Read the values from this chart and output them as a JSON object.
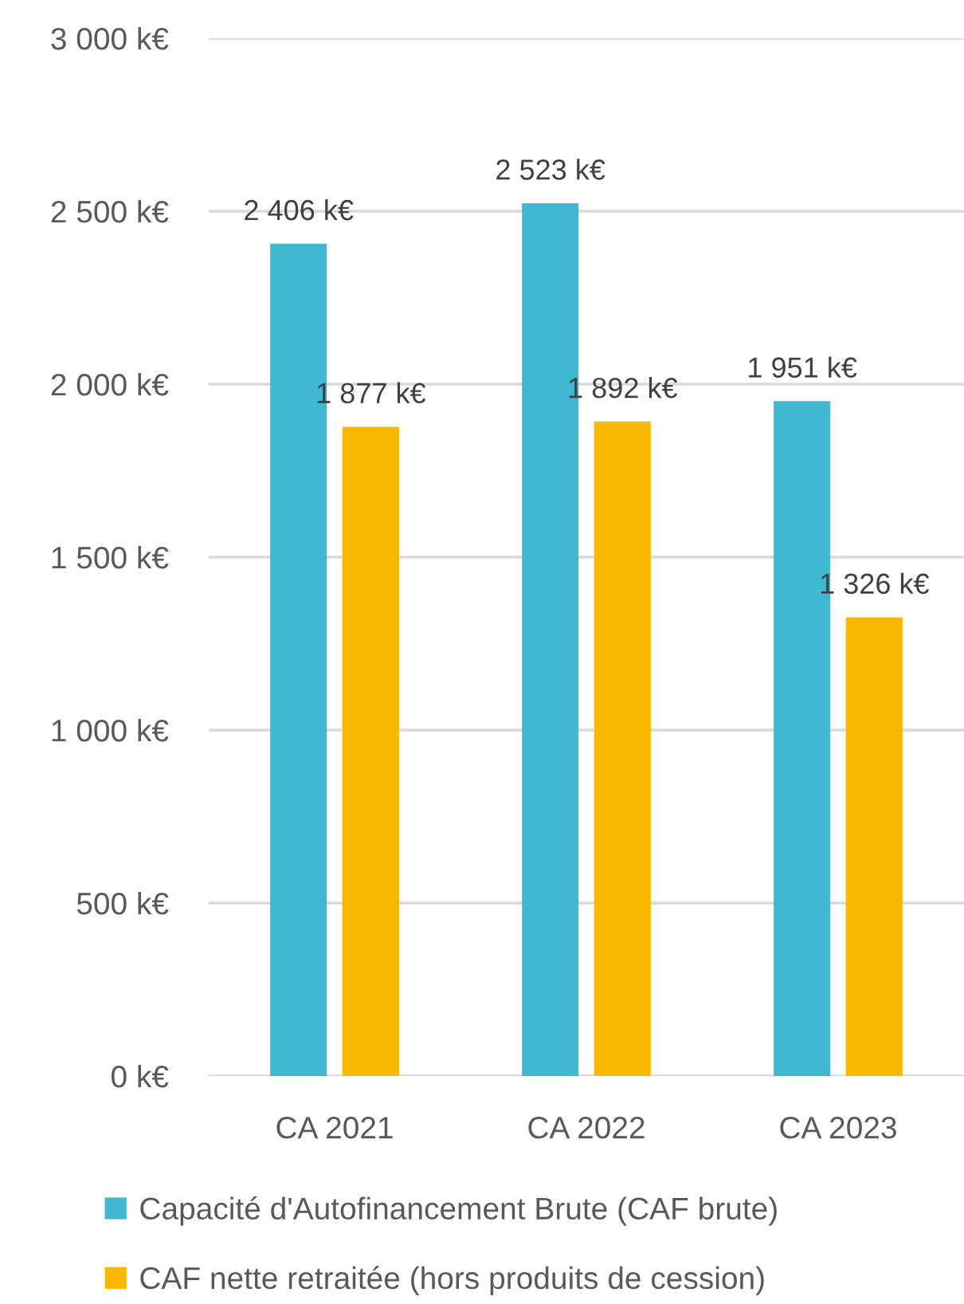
{
  "chart_data": {
    "type": "bar",
    "categories": [
      "CA 2021",
      "CA 2022",
      "CA 2023"
    ],
    "series": [
      {
        "name": "Capacité d'Autofinancement Brute (CAF brute)",
        "color": "#41b8d2",
        "values": [
          2406,
          2523,
          1951
        ],
        "value_labels": [
          "2 406 k€",
          "2 523 k€",
          "1 951 k€"
        ]
      },
      {
        "name": "CAF nette retraitée (hors produits de cession)",
        "color": "#f9b800",
        "values": [
          1877,
          1892,
          1326
        ],
        "value_labels": [
          "1 877 k€",
          "1 892 k€",
          "1 326 k€"
        ]
      }
    ],
    "ylim": [
      0,
      3000
    ],
    "yticks": [
      {
        "value": 0,
        "label": "0 k€"
      },
      {
        "value": 500,
        "label": "500 k€"
      },
      {
        "value": 1000,
        "label": "1 000 k€"
      },
      {
        "value": 1500,
        "label": "1 500 k€"
      },
      {
        "value": 2000,
        "label": "2 000 k€"
      },
      {
        "value": 2500,
        "label": "2 500 k€"
      },
      {
        "value": 3000,
        "label": "3 000 k€"
      }
    ],
    "grid": "y",
    "legend": "bottom"
  }
}
